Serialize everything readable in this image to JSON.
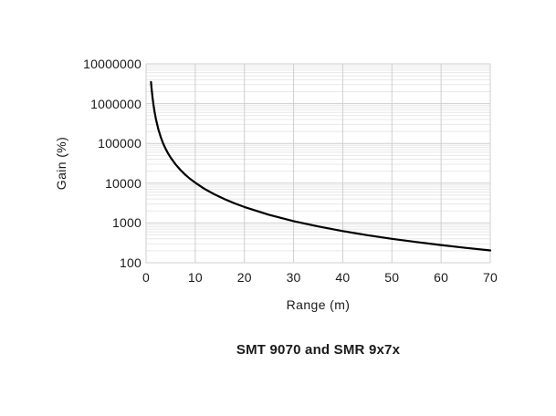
{
  "chart_data": {
    "type": "line",
    "title": "SMT 9070 and SMR 9x7x",
    "xlabel": "Range (m)",
    "ylabel": "Gain (%)",
    "xlim": [
      0,
      70
    ],
    "ylim": [
      100,
      10000000
    ],
    "y_scale": "log",
    "grid": true,
    "legend_position": "none",
    "x_ticks": [
      0,
      10,
      20,
      30,
      40,
      50,
      60,
      70
    ],
    "x_tick_labels": [
      "0",
      "10",
      "20",
      "30",
      "40",
      "50",
      "60",
      "70"
    ],
    "y_ticks": [
      100,
      1000,
      10000,
      100000,
      1000000,
      10000000
    ],
    "y_tick_labels": [
      "100",
      "1000",
      "10000",
      "100000",
      "1000000",
      "10000000"
    ],
    "series": [
      {
        "name": "SMT 9070 and SMR 9x7x",
        "x": [
          1,
          1.1,
          1.2,
          1.3,
          1.5,
          1.7,
          2,
          2.5,
          3,
          3.5,
          4,
          4.5,
          5,
          6,
          7,
          8,
          9,
          10,
          12,
          14,
          16,
          18,
          20,
          25,
          30,
          35,
          40,
          45,
          50,
          55,
          60,
          65,
          70
        ],
        "gain": [
          3500000,
          2534000,
          1900000,
          1467000,
          938000,
          645000,
          406000,
          224000,
          142000,
          98300,
          72300,
          55500,
          44000,
          29700,
          21400,
          16200,
          12700,
          10250,
          7070,
          5170,
          3940,
          3110,
          2520,
          1610,
          1114,
          818,
          626,
          494,
          400,
          331,
          278,
          237,
          204
        ]
      }
    ],
    "colors": {
      "curve": "#000000",
      "major_grid": "#cfcfcf",
      "minor_grid": "#e8e8e8",
      "text": "#1a1a1a",
      "background": "#ffffff"
    }
  }
}
